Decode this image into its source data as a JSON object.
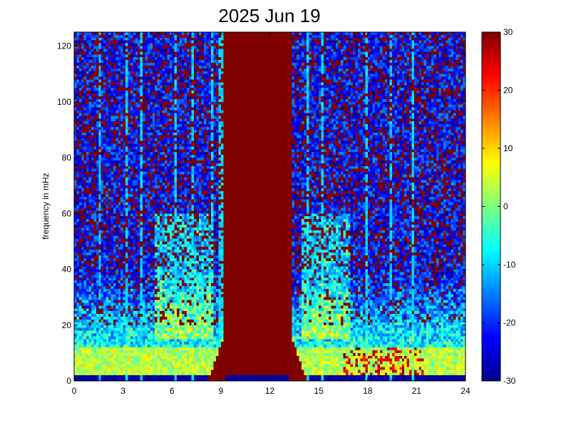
{
  "chart_data": {
    "type": "heatmap",
    "title": "2025 Jun 19",
    "xlabel": "",
    "ylabel": "frequency in mHz",
    "xlim": [
      0,
      24
    ],
    "ylim": [
      0,
      125
    ],
    "xticks": [
      "0",
      "3",
      "6",
      "9",
      "12",
      "15",
      "18",
      "21",
      "24"
    ],
    "yticks": [
      "0",
      "20",
      "40",
      "60",
      "80",
      "100",
      "120"
    ],
    "colorbar": {
      "colormap": "jet",
      "clim": [
        -30,
        30
      ],
      "ticks": [
        "30",
        "20",
        "10",
        "0",
        "-10",
        "-20",
        "-30"
      ]
    },
    "saturated_band_hours": [
      9.6,
      12.9
    ],
    "vertical_streaks_hours": [
      1.6,
      3.2,
      4.1,
      6.2,
      7.3,
      8.5,
      9.0,
      13.1,
      14.3,
      15.2,
      17.9,
      19.4,
      20.8
    ],
    "colors": {
      "background_level": "#7f0000",
      "noise_level": "#0b2cd8",
      "mid_level": "#22c6ff",
      "hot_level": "#ffe600"
    }
  }
}
